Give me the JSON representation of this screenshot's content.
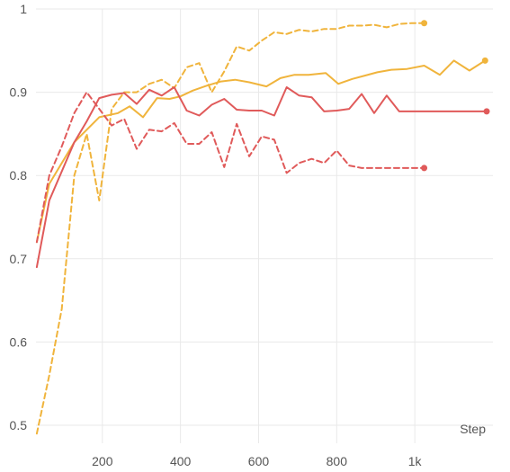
{
  "chart_data": {
    "type": "line",
    "title": "",
    "xlabel": "Step",
    "ylabel": "",
    "xlim": [
      30,
      1200
    ],
    "ylim": [
      0.5,
      1.0
    ],
    "x_ticks": [
      {
        "value": 200,
        "label": "200"
      },
      {
        "value": 400,
        "label": "400"
      },
      {
        "value": 600,
        "label": "600"
      },
      {
        "value": 800,
        "label": "800"
      },
      {
        "value": 1000,
        "label": "1k"
      }
    ],
    "y_ticks": [
      {
        "value": 0.5,
        "label": "0.5"
      },
      {
        "value": 0.6,
        "label": "0.6"
      },
      {
        "value": 0.7,
        "label": "0.7"
      },
      {
        "value": 0.8,
        "label": "0.8"
      },
      {
        "value": 0.9,
        "label": "0.9"
      },
      {
        "value": 1.0,
        "label": "1"
      }
    ],
    "grid": true,
    "legend": "none",
    "series": [
      {
        "color": "#f0b43c",
        "dashed": true,
        "end_marker": true,
        "x": [
          32,
          64,
          96,
          128,
          160,
          192,
          224,
          256,
          288,
          320,
          352,
          384,
          416,
          448,
          480,
          512,
          544,
          576,
          608,
          640,
          672,
          704,
          736,
          768,
          800,
          832,
          864,
          896,
          928,
          960,
          992,
          1024
        ],
        "y": [
          0.49,
          0.56,
          0.64,
          0.8,
          0.85,
          0.77,
          0.88,
          0.9,
          0.9,
          0.91,
          0.915,
          0.905,
          0.93,
          0.935,
          0.9,
          0.925,
          0.955,
          0.95,
          0.962,
          0.972,
          0.97,
          0.975,
          0.973,
          0.976,
          0.976,
          0.98,
          0.98,
          0.981,
          0.978,
          0.982,
          0.983,
          0.983
        ]
      },
      {
        "color": "#f0b43c",
        "dashed": false,
        "end_marker": true,
        "x": [
          32,
          64,
          128,
          192,
          240,
          270,
          304,
          340,
          372,
          400,
          432,
          468,
          504,
          540,
          576,
          620,
          656,
          692,
          728,
          772,
          804,
          840,
          872,
          904,
          940,
          980,
          1024,
          1064,
          1100,
          1140,
          1180
        ],
        "y": [
          0.72,
          0.79,
          0.84,
          0.87,
          0.875,
          0.883,
          0.87,
          0.893,
          0.892,
          0.895,
          0.902,
          0.908,
          0.913,
          0.915,
          0.912,
          0.907,
          0.917,
          0.921,
          0.921,
          0.923,
          0.91,
          0.916,
          0.92,
          0.924,
          0.927,
          0.928,
          0.932,
          0.921,
          0.938,
          0.926,
          0.938
        ]
      },
      {
        "color": "#e05a5a",
        "dashed": true,
        "end_marker": true,
        "x": [
          32,
          64,
          96,
          128,
          160,
          192,
          224,
          256,
          288,
          320,
          352,
          384,
          416,
          448,
          480,
          512,
          544,
          576,
          608,
          640,
          672,
          704,
          736,
          768,
          800,
          832,
          864,
          896,
          928,
          960,
          992,
          1024
        ],
        "y": [
          0.72,
          0.8,
          0.835,
          0.875,
          0.9,
          0.88,
          0.86,
          0.868,
          0.832,
          0.855,
          0.853,
          0.863,
          0.838,
          0.838,
          0.852,
          0.81,
          0.862,
          0.823,
          0.847,
          0.843,
          0.803,
          0.815,
          0.82,
          0.815,
          0.83,
          0.812,
          0.809,
          0.809,
          0.809,
          0.809,
          0.809,
          0.809
        ]
      },
      {
        "color": "#e05a5a",
        "dashed": false,
        "end_marker": true,
        "x": [
          32,
          64,
          128,
          160,
          192,
          224,
          256,
          288,
          320,
          352,
          384,
          416,
          448,
          480,
          512,
          544,
          576,
          608,
          640,
          672,
          704,
          736,
          768,
          800,
          832,
          864,
          896,
          928,
          960,
          992,
          1024,
          1056,
          1088,
          1120,
          1152,
          1184
        ],
        "y": [
          0.69,
          0.77,
          0.84,
          0.865,
          0.893,
          0.897,
          0.899,
          0.886,
          0.903,
          0.896,
          0.906,
          0.878,
          0.872,
          0.885,
          0.892,
          0.879,
          0.878,
          0.878,
          0.872,
          0.906,
          0.896,
          0.894,
          0.877,
          0.878,
          0.88,
          0.898,
          0.875,
          0.896,
          0.877,
          0.877,
          0.877,
          0.877,
          0.877,
          0.877,
          0.877,
          0.877
        ]
      }
    ]
  }
}
